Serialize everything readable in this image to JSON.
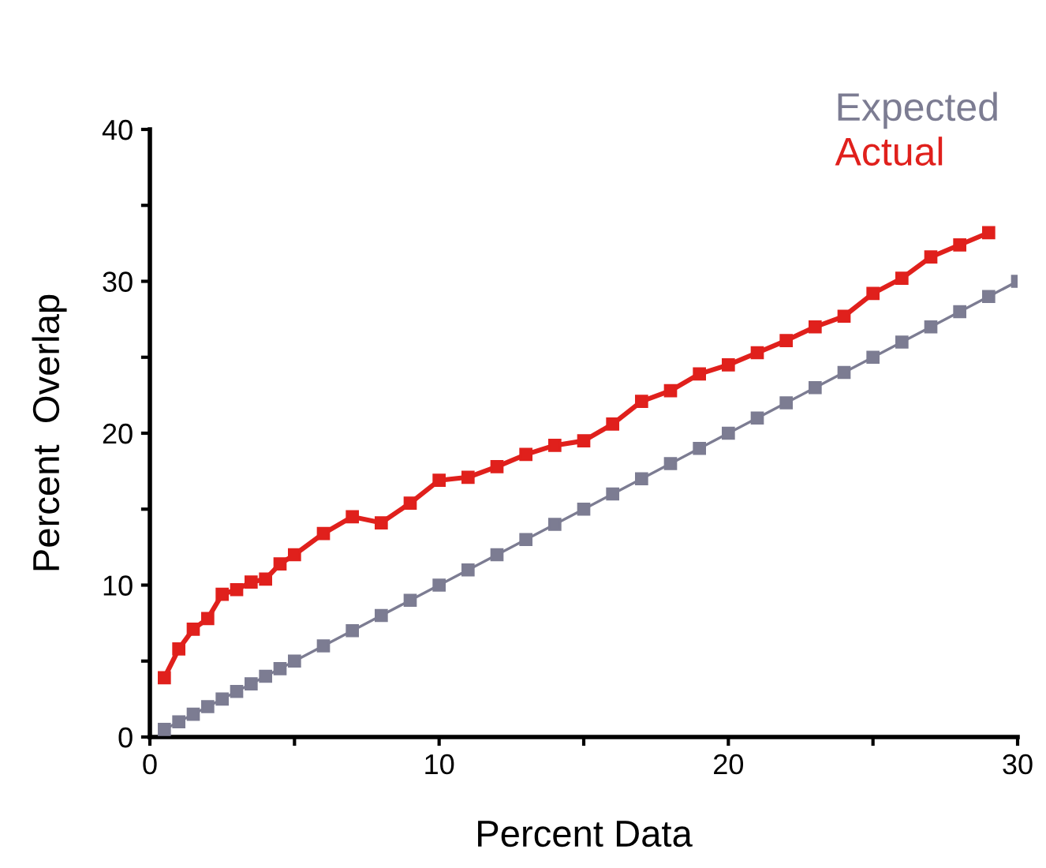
{
  "chart_data": {
    "type": "line",
    "xlabel": "Percent Data",
    "ylabel": "Percent  Overlap",
    "xlim": [
      0,
      30
    ],
    "ylim": [
      0,
      40
    ],
    "xticks": [
      0,
      {
        "value": 5,
        "label": null
      },
      10,
      {
        "value": 15,
        "label": null
      },
      20,
      {
        "value": 25,
        "label": null
      },
      30
    ],
    "yticks": [
      0,
      {
        "value": 5,
        "label": null
      },
      10,
      {
        "value": 15,
        "label": null
      },
      20,
      {
        "value": 25,
        "label": null
      },
      30,
      {
        "value": 35,
        "label": null
      },
      40
    ],
    "grid": false,
    "legend": "top right",
    "marker": "square",
    "line_style": "solid",
    "series": [
      {
        "name": "Expected",
        "color": "#7c7c92",
        "x": [
          0.5,
          1,
          1.5,
          2,
          2.5,
          3,
          3.5,
          4,
          4.5,
          5,
          6,
          7,
          8,
          9,
          10,
          11,
          12,
          13,
          14,
          15,
          16,
          17,
          18,
          19,
          20,
          21,
          22,
          23,
          24,
          25,
          26,
          27,
          28,
          29,
          30
        ],
        "values": [
          0.5,
          1,
          1.5,
          2,
          2.5,
          3,
          3.5,
          4,
          4.5,
          5,
          6,
          7,
          8,
          9,
          10,
          11,
          12,
          13,
          14,
          15,
          16,
          17,
          18,
          19,
          20,
          21,
          22,
          23,
          24,
          25,
          26,
          27,
          28,
          29,
          30
        ]
      },
      {
        "name": "Actual",
        "color": "#e0201c",
        "x": [
          0.5,
          1,
          1.5,
          2,
          2.5,
          3,
          3.5,
          4,
          4.5,
          5,
          6,
          7,
          8,
          9,
          10,
          11,
          12,
          13,
          14,
          15,
          16,
          17,
          18,
          19,
          20,
          21,
          22,
          23,
          24,
          25,
          26,
          27,
          28,
          29
        ],
        "values": [
          3.9,
          5.8,
          7.1,
          7.8,
          9.4,
          9.7,
          10.2,
          10.4,
          11.4,
          12.0,
          13.4,
          14.5,
          14.1,
          15.4,
          16.9,
          17.1,
          17.8,
          18.6,
          19.2,
          19.5,
          20.6,
          22.1,
          22.8,
          23.9,
          24.5,
          25.3,
          26.1,
          27.0,
          27.7,
          29.2,
          30.2,
          31.6,
          32.4,
          33.2
        ]
      }
    ]
  }
}
